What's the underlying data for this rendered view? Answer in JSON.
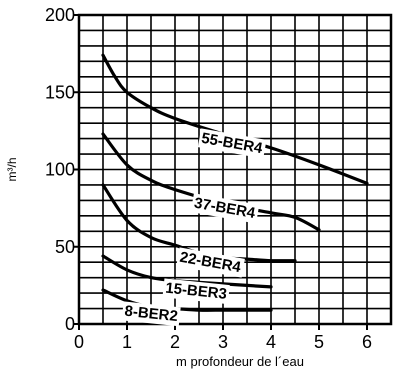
{
  "chart_data": {
    "type": "line",
    "title": "",
    "xlabel": "m profondeur de l´eau",
    "ylabel": "m³/h",
    "xlim": [
      0,
      6.5
    ],
    "ylim": [
      0,
      200
    ],
    "x_ticks": [
      0,
      1,
      2,
      3,
      4,
      5,
      6
    ],
    "y_ticks": [
      0,
      50,
      100,
      150,
      200
    ],
    "x_tick_labels": [
      "0",
      "1",
      "2",
      "3",
      "4",
      "5",
      "6"
    ],
    "y_tick_labels": [
      "0",
      "50",
      "100",
      "150",
      "200"
    ],
    "grid": true,
    "x_grid_step": 0.5,
    "y_grid_step": 10,
    "series": [
      {
        "name": "55-BER4",
        "label_at": [
          2.55,
          120
        ],
        "label_angle": 10,
        "x": [
          0.5,
          0.75,
          1.0,
          1.5,
          2.0,
          3.0,
          4.0,
          5.0,
          6.0
        ],
        "y": [
          174,
          160,
          150,
          140,
          133,
          123,
          114,
          103,
          91
        ]
      },
      {
        "name": "37-BER4",
        "label_at": [
          2.4,
          78
        ],
        "label_angle": 10,
        "x": [
          0.5,
          1.0,
          1.5,
          2.0,
          3.0,
          4.0,
          4.5,
          5.0
        ],
        "y": [
          123,
          103,
          93,
          87,
          78,
          72,
          69,
          61
        ]
      },
      {
        "name": "22-BER4",
        "label_at": [
          2.1,
          43
        ],
        "label_angle": 10,
        "x": [
          0.5,
          1.0,
          1.5,
          2.0,
          2.5,
          3.0,
          3.5,
          4.0,
          4.5
        ],
        "y": [
          90,
          67,
          56,
          51,
          46,
          43,
          42,
          41,
          41
        ]
      },
      {
        "name": "15-BER3",
        "label_at": [
          1.8,
          23
        ],
        "label_angle": 6,
        "x": [
          0.5,
          1.0,
          1.5,
          2.0,
          2.5,
          3.0,
          3.5,
          4.0
        ],
        "y": [
          44,
          35,
          30,
          28,
          27,
          26,
          25,
          24
        ]
      },
      {
        "name": "8-BER2",
        "label_at": [
          0.95,
          8
        ],
        "label_angle": 6,
        "x": [
          0.5,
          1.0,
          1.5,
          2.0,
          2.5,
          3.0,
          3.5,
          4.0
        ],
        "y": [
          22,
          15,
          11,
          10,
          9,
          9,
          9,
          9
        ]
      }
    ]
  }
}
